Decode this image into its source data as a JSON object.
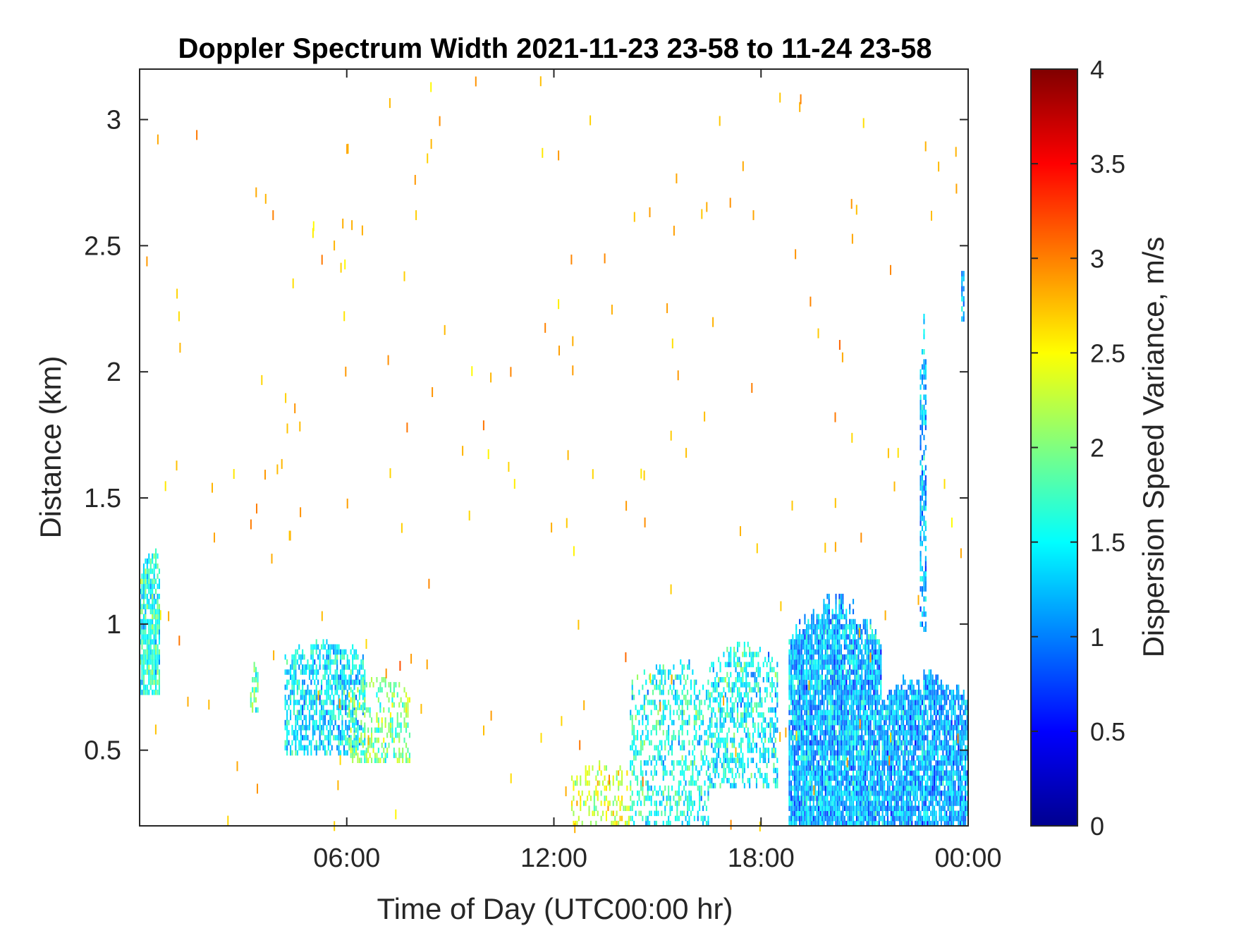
{
  "chart_data": {
    "type": "heatmap",
    "title": "Doppler Spectrum Width 2021-11-23 23-58 to 11-24 23-58",
    "xlabel": "Time of Day (UTC00:00 hr)",
    "ylabel": "Distance (km)",
    "colorbar_label": "Dispersion Speed Variance, m/s",
    "colormap": "jet",
    "xlim_hours": [
      0,
      24
    ],
    "ylim_km": [
      0.2,
      3.2
    ],
    "clim": [
      0,
      4
    ],
    "grid": false,
    "x_ticks": [
      {
        "value": 6,
        "label": "06:00"
      },
      {
        "value": 12,
        "label": "12:00"
      },
      {
        "value": 18,
        "label": "18:00"
      },
      {
        "value": 24,
        "label": "00:00"
      }
    ],
    "y_ticks": [
      {
        "value": 0.5,
        "label": "0.5"
      },
      {
        "value": 1,
        "label": "1"
      },
      {
        "value": 1.5,
        "label": "1.5"
      },
      {
        "value": 2,
        "label": "2"
      },
      {
        "value": 2.5,
        "label": "2.5"
      },
      {
        "value": 3,
        "label": "3"
      }
    ],
    "colorbar_ticks": [
      {
        "value": 0,
        "label": "0"
      },
      {
        "value": 0.5,
        "label": "0.5"
      },
      {
        "value": 1,
        "label": "1"
      },
      {
        "value": 1.5,
        "label": "1.5"
      },
      {
        "value": 2,
        "label": "2"
      },
      {
        "value": 2.5,
        "label": "2.5"
      },
      {
        "value": 3,
        "label": "3"
      },
      {
        "value": 3.5,
        "label": "3.5"
      },
      {
        "value": 4,
        "label": "4"
      }
    ],
    "echo_regions": [
      {
        "t_start": 0.0,
        "t_end": 0.6,
        "h_min": 0.72,
        "h_max": 1.32,
        "mean_width": 1.6,
        "density": 0.8
      },
      {
        "t_start": 3.2,
        "t_end": 3.4,
        "h_min": 0.65,
        "h_max": 0.85,
        "mean_width": 1.8,
        "density": 0.5
      },
      {
        "t_start": 4.2,
        "t_end": 6.5,
        "h_min": 0.48,
        "h_max": 0.95,
        "mean_width": 1.4,
        "density": 0.6
      },
      {
        "t_start": 6.0,
        "t_end": 7.8,
        "h_min": 0.45,
        "h_max": 0.8,
        "mean_width": 2.0,
        "density": 0.35
      },
      {
        "t_start": 12.5,
        "t_end": 14.2,
        "h_min": 0.2,
        "h_max": 0.45,
        "mean_width": 2.3,
        "density": 0.3
      },
      {
        "t_start": 14.2,
        "t_end": 16.5,
        "h_min": 0.2,
        "h_max": 0.88,
        "mean_width": 1.6,
        "density": 0.4
      },
      {
        "t_start": 16.5,
        "t_end": 18.5,
        "h_min": 0.35,
        "h_max": 0.95,
        "mean_width": 1.5,
        "density": 0.5
      },
      {
        "t_start": 18.8,
        "t_end": 21.5,
        "h_min": 0.2,
        "h_max": 1.12,
        "mean_width": 1.2,
        "density": 0.9
      },
      {
        "t_start": 21.5,
        "t_end": 24.0,
        "h_min": 0.2,
        "h_max": 0.82,
        "mean_width": 1.15,
        "density": 0.85
      },
      {
        "t_start": 22.6,
        "t_end": 22.8,
        "h_min": 0.95,
        "h_max": 2.25,
        "mean_width": 1.2,
        "density": 0.55
      },
      {
        "t_start": 23.8,
        "t_end": 23.9,
        "h_min": 2.2,
        "h_max": 2.45,
        "mean_width": 1.2,
        "density": 0.5
      }
    ],
    "scattered_noise_width": 2.8
  }
}
